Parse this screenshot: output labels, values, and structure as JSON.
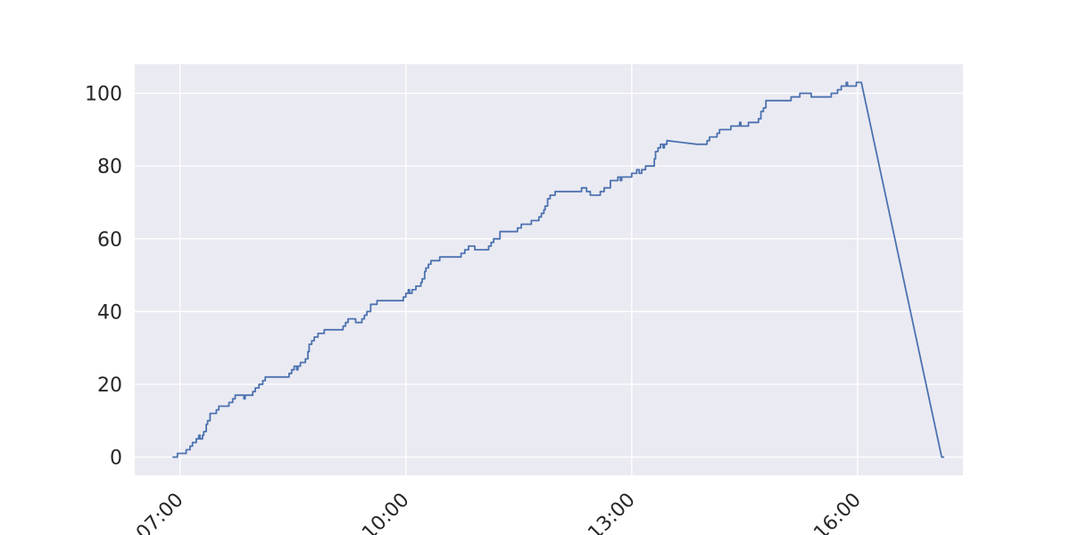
{
  "chart_data": {
    "type": "line",
    "title": "",
    "xlabel": "",
    "ylabel": "",
    "x_unit": "time of day (HH:MM)",
    "xlim": [
      "06:24",
      "17:24"
    ],
    "ylim": [
      -5,
      108
    ],
    "x_ticks": [
      "07:00",
      "10:00",
      "13:00",
      "16:00"
    ],
    "y_ticks": [
      0,
      20,
      40,
      60,
      80,
      100
    ],
    "grid": true,
    "legend": "none",
    "colors": {
      "background": "#eaeaf2",
      "grid": "#ffffff",
      "line": "#4c72b0",
      "text": "#262626"
    },
    "series": [
      {
        "name": "",
        "step": true,
        "points": [
          [
            "06:54",
            0
          ],
          [
            "06:58",
            1
          ],
          [
            "07:05",
            2
          ],
          [
            "07:08",
            3
          ],
          [
            "07:10",
            4
          ],
          [
            "07:13",
            5
          ],
          [
            "07:15",
            6
          ],
          [
            "07:16",
            5
          ],
          [
            "07:18",
            6
          ],
          [
            "07:19",
            7
          ],
          [
            "07:21",
            9
          ],
          [
            "07:22",
            10
          ],
          [
            "07:24",
            12
          ],
          [
            "07:29",
            13
          ],
          [
            "07:31",
            14
          ],
          [
            "07:39",
            15
          ],
          [
            "07:42",
            16
          ],
          [
            "07:44",
            17
          ],
          [
            "07:51",
            16
          ],
          [
            "07:52",
            17
          ],
          [
            "07:58",
            18
          ],
          [
            "08:00",
            19
          ],
          [
            "08:03",
            20
          ],
          [
            "08:06",
            21
          ],
          [
            "08:08",
            22
          ],
          [
            "08:27",
            23
          ],
          [
            "08:29",
            24
          ],
          [
            "08:31",
            25
          ],
          [
            "08:33",
            24
          ],
          [
            "08:34",
            25
          ],
          [
            "08:36",
            26
          ],
          [
            "08:40",
            27
          ],
          [
            "08:42",
            29
          ],
          [
            "08:43",
            31
          ],
          [
            "08:45",
            32
          ],
          [
            "08:47",
            33
          ],
          [
            "08:50",
            34
          ],
          [
            "08:55",
            35
          ],
          [
            "09:10",
            36
          ],
          [
            "09:12",
            37
          ],
          [
            "09:14",
            38
          ],
          [
            "09:20",
            37
          ],
          [
            "09:25",
            38
          ],
          [
            "09:27",
            39
          ],
          [
            "09:29",
            40
          ],
          [
            "09:32",
            42
          ],
          [
            "09:37",
            43
          ],
          [
            "09:58",
            44
          ],
          [
            "10:00",
            45
          ],
          [
            "10:02",
            46
          ],
          [
            "10:03",
            45
          ],
          [
            "10:05",
            46
          ],
          [
            "10:08",
            47
          ],
          [
            "10:12",
            48
          ],
          [
            "10:13",
            49
          ],
          [
            "10:15",
            51
          ],
          [
            "10:16",
            52
          ],
          [
            "10:18",
            53
          ],
          [
            "10:20",
            54
          ],
          [
            "10:27",
            55
          ],
          [
            "10:44",
            56
          ],
          [
            "10:47",
            57
          ],
          [
            "10:50",
            58
          ],
          [
            "10:55",
            57
          ],
          [
            "11:06",
            58
          ],
          [
            "11:08",
            59
          ],
          [
            "11:10",
            60
          ],
          [
            "11:15",
            62
          ],
          [
            "11:29",
            63
          ],
          [
            "11:32",
            64
          ],
          [
            "11:40",
            65
          ],
          [
            "11:46",
            66
          ],
          [
            "11:48",
            67
          ],
          [
            "11:50",
            68
          ],
          [
            "11:51",
            69
          ],
          [
            "11:53",
            71
          ],
          [
            "11:55",
            72
          ],
          [
            "11:59",
            73
          ],
          [
            "12:20",
            74
          ],
          [
            "12:24",
            73
          ],
          [
            "12:27",
            72
          ],
          [
            "12:35",
            73
          ],
          [
            "12:38",
            74
          ],
          [
            "12:43",
            76
          ],
          [
            "12:49",
            77
          ],
          [
            "12:51",
            76
          ],
          [
            "12:52",
            77
          ],
          [
            "13:00",
            78
          ],
          [
            "13:04",
            79
          ],
          [
            "13:06",
            78
          ],
          [
            "13:08",
            79
          ],
          [
            "13:11",
            80
          ],
          [
            "13:18",
            82
          ],
          [
            "13:19",
            84
          ],
          [
            "13:21",
            85
          ],
          [
            "13:23",
            86
          ],
          [
            "13:25",
            85
          ],
          [
            "13:26",
            86
          ],
          [
            "13:28",
            87
          ],
          [
            "13:52",
            86
          ],
          [
            "14:00",
            87
          ],
          [
            "14:02",
            88
          ],
          [
            "14:08",
            89
          ],
          [
            "14:10",
            90
          ],
          [
            "14:19",
            91
          ],
          [
            "14:26",
            92
          ],
          [
            "14:27",
            91
          ],
          [
            "14:33",
            92
          ],
          [
            "14:41",
            93
          ],
          [
            "14:43",
            95
          ],
          [
            "14:45",
            96
          ],
          [
            "14:47",
            98
          ],
          [
            "15:07",
            99
          ],
          [
            "15:14",
            100
          ],
          [
            "15:23",
            99
          ],
          [
            "15:39",
            100
          ],
          [
            "15:44",
            101
          ],
          [
            "15:47",
            102
          ],
          [
            "15:51",
            103
          ],
          [
            "15:52",
            102
          ],
          [
            "15:59",
            103
          ],
          [
            "16:03",
            103
          ],
          [
            "17:07",
            0
          ],
          [
            "17:09",
            0
          ]
        ]
      }
    ]
  }
}
